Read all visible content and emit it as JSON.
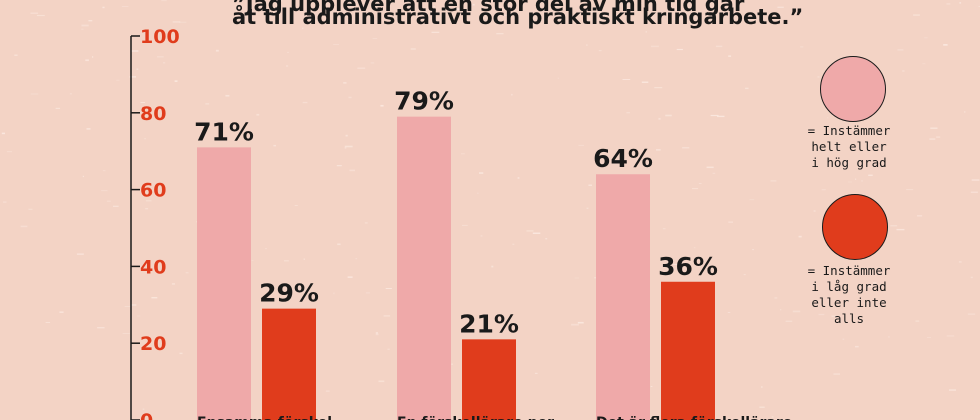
{
  "title_lines": [
    "”Jag upplever att en stor del av min tid går",
    "åt till administrativt och praktiskt kringarbete.”"
  ],
  "legend": [
    {
      "label": "= Instämmer\nhelt eller\ni hög grad",
      "color": "#efa9a9"
    },
    {
      "label": "= Instämmer\ni låg grad\neller inte\nalls",
      "color": "#e03c1c"
    }
  ],
  "colors": {
    "background": "#f3d3c5",
    "axis": "#e03c1c",
    "text": "#1a1a1a"
  },
  "chart_data": {
    "type": "bar",
    "categories": [
      "Ensamma förskol-",
      "En förskollärare per",
      "Det är flera förskollärare"
    ],
    "series": [
      {
        "name": "= Instämmer helt eller i hög grad",
        "values": [
          71,
          79,
          64
        ],
        "labels": [
          "71%",
          "79%",
          "64%"
        ],
        "color": "#efa9a9"
      },
      {
        "name": "= Instämmer i låg grad eller inte alls",
        "values": [
          29,
          21,
          36
        ],
        "labels": [
          "29%",
          "21%",
          "36%"
        ],
        "color": "#e03c1c"
      }
    ],
    "ylim": [
      0,
      100
    ],
    "yticks": [
      0,
      20,
      40,
      60,
      80,
      100
    ],
    "xlabel": "",
    "ylabel": "",
    "grid": false
  }
}
